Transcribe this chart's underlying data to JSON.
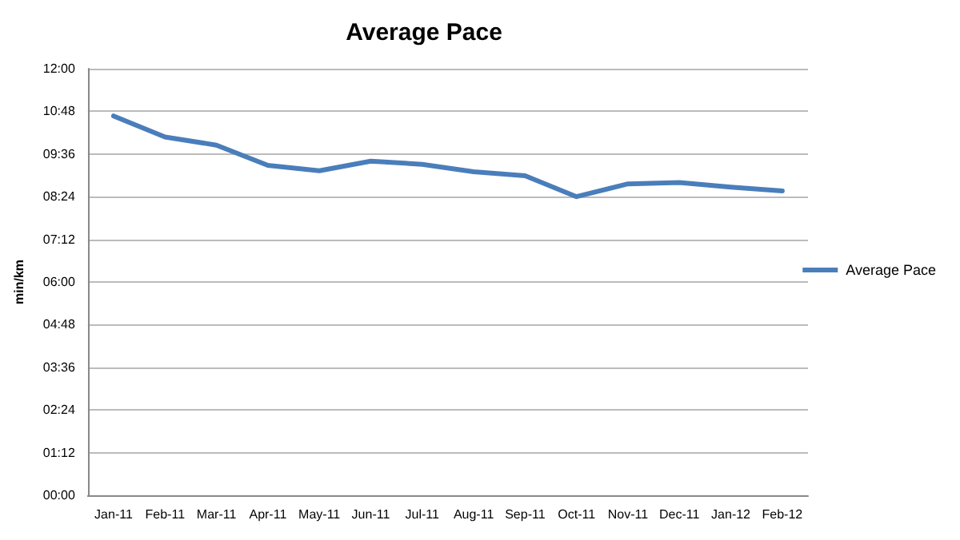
{
  "chart_data": {
    "type": "line",
    "title": "Average Pace",
    "ylabel": "min/km",
    "categories": [
      "Jan-11",
      "Feb-11",
      "Mar-11",
      "Apr-11",
      "May-11",
      "Jun-11",
      "Jul-11",
      "Aug-11",
      "Sep-11",
      "Oct-11",
      "Nov-11",
      "Dec-11",
      "Jan-12",
      "Feb-12"
    ],
    "series": [
      {
        "name": "Average Pace",
        "color": "#4a7ebb",
        "values": [
          10.67,
          10.08,
          9.85,
          9.28,
          9.13,
          9.4,
          9.31,
          9.1,
          8.99,
          8.4,
          8.76,
          8.8,
          8.67,
          8.56
        ]
      }
    ],
    "ylim": [
      0,
      12
    ],
    "yticks": [
      {
        "value": 0,
        "label": "00:00"
      },
      {
        "value": 1.2,
        "label": "01:12"
      },
      {
        "value": 2.4,
        "label": "02:24"
      },
      {
        "value": 3.6,
        "label": "03:36"
      },
      {
        "value": 4.8,
        "label": "04:48"
      },
      {
        "value": 6,
        "label": "06:00"
      },
      {
        "value": 7.2,
        "label": "07:12"
      },
      {
        "value": 8.4,
        "label": "08:24"
      },
      {
        "value": 9.6,
        "label": "09:36"
      },
      {
        "value": 10.8,
        "label": "10:48"
      },
      {
        "value": 12,
        "label": "12:00"
      }
    ],
    "grid": "y",
    "legend": "right",
    "marker": "none",
    "line_style": "solid"
  }
}
